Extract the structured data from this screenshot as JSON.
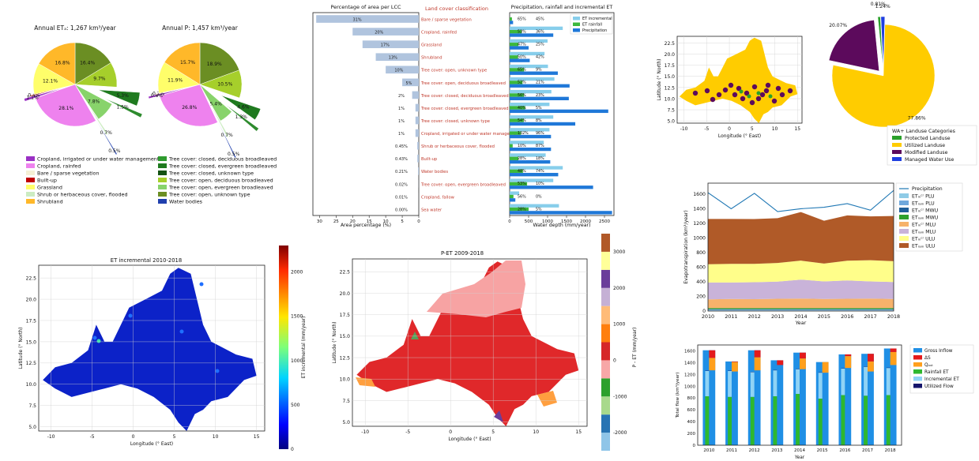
{
  "chart_data": [
    {
      "id": "pie_et",
      "type": "pie",
      "title": "Annual ETₐ: 1,267 km³/year",
      "values": [
        16.4,
        9.7,
        5.3,
        1.5,
        7.8,
        0.7,
        0.5,
        28.1,
        1.1,
        0.4,
        12.1,
        16.8
      ],
      "labels": [
        "16.4%",
        "9.7%",
        "5.3%",
        "1.5%",
        "7.8%",
        "0.7%",
        "0.5%",
        "28.1%",
        "1.1%",
        "0.4%",
        "12.1%",
        "16.8%"
      ],
      "colors": [
        "#6b8e23",
        "#a6cf2b",
        "#1f7a1f",
        "#2e8b2e",
        "#88d36b",
        "#ccecc2",
        "#1f3fae",
        "#ee82ee",
        "#9a30c4",
        "#c00000",
        "#fffe6a",
        "#ffb829"
      ]
    },
    {
      "id": "pie_p",
      "type": "pie",
      "title": "Annual P: 1,457 km³/year",
      "values": [
        18.9,
        10.5,
        4.6,
        1.3,
        5.4,
        0.7,
        0.5,
        26.8,
        0.8,
        0.2,
        11.9,
        15.7
      ],
      "labels": [
        "18.9%",
        "10.5%",
        "4.6%",
        "1.3%",
        "5.4%",
        "0.7%",
        "0.5%",
        "26.8%",
        "0.8%",
        "0.2%",
        "11.9%",
        "15.7%"
      ],
      "colors": [
        "#6b8e23",
        "#a6cf2b",
        "#1f7a1f",
        "#2e8b2e",
        "#88d36b",
        "#ccecc2",
        "#1f3fae",
        "#ee82ee",
        "#9a30c4",
        "#c00000",
        "#fffe6a",
        "#ffb829"
      ]
    },
    {
      "id": "lcc_bar",
      "type": "bar",
      "title": "Percentage of area per LCC",
      "xlabel": "Area percentage (%)",
      "xticks": [
        "30",
        "25",
        "20",
        "15",
        "10",
        "5",
        "0"
      ],
      "categories": [
        "Bare / sparse vegetation",
        "Cropland, rainfed",
        "Grassland",
        "Shrubland",
        "Tree cover: open, unknown type",
        "Tree cover: open, deciduous broadleaved",
        "Tree cover: closed, deciduous broadleaved",
        "Tree cover: closed, evergreen broadleaved",
        "Tree cover: closed, unknown type",
        "Cropland, irrigated or under water management",
        "Shrub or herbaceous cover, flooded",
        "Built-up",
        "Water bodies",
        "Tree cover: open, evergreen broadleaved",
        "Cropland, fallow",
        "Sea water"
      ],
      "values": [
        31,
        20,
        17,
        13,
        10,
        5,
        2,
        1,
        1,
        1,
        0.45,
        0.43,
        0.21,
        0.02,
        0.01,
        0.0
      ],
      "value_labels": [
        "31%",
        "20%",
        "17%",
        "13%",
        "10%",
        "5%",
        "2%",
        "1%",
        "1%",
        "1%",
        "0.45%",
        "0.43%",
        "0.21%",
        "0.02%",
        "0.01%",
        "0.00%"
      ],
      "xlim": [
        32,
        0
      ],
      "center_title": "Land cover classification"
    },
    {
      "id": "water_bar",
      "type": "bar",
      "title": "Precipitation, rainfall and incremental ET",
      "xlabel": "Water depth (mm/year)",
      "xticks": [
        "0",
        "500",
        "1000",
        "1500",
        "2000",
        "2500"
      ],
      "xlim": [
        0,
        2750
      ],
      "series": [
        {
          "name": "ET incremental",
          "color": "#87ceeb",
          "values": [
            0,
            1400,
            1000,
            920,
            1010,
            1180,
            1100,
            1050,
            1150,
            1050,
            900,
            950,
            1400,
            1150,
            250,
            1300
          ]
        },
        {
          "name": "ET rainfall",
          "color": "#3cb83c",
          "values": [
            60,
            320,
            230,
            220,
            380,
            340,
            380,
            410,
            370,
            300,
            80,
            230,
            350,
            460,
            100,
            500
          ]
        },
        {
          "name": "Precipitation",
          "color": "#1f78d8",
          "values": [
            90,
            1150,
            500,
            530,
            1270,
            1580,
            1560,
            2600,
            1730,
            1090,
            1090,
            1070,
            1280,
            2200,
            150,
            2700
          ]
        }
      ],
      "pct_labels": [
        [
          "65%",
          "45%"
        ],
        [
          "53%",
          "36%"
        ],
        [
          "47%",
          "25%"
        ],
        [
          "50%",
          "42%"
        ],
        [
          "65%",
          "9%"
        ],
        [
          "52%",
          "21%"
        ],
        [
          "56%",
          "23%"
        ],
        [
          "40%",
          "5%"
        ],
        [
          "54%",
          "8%"
        ],
        [
          "102%",
          "96%"
        ],
        [
          "10%",
          "87%"
        ],
        [
          "28%",
          "18%"
        ],
        [
          "48%",
          "74%"
        ],
        [
          "53%",
          "10%"
        ],
        [
          "56%",
          "0%"
        ],
        [
          "28%",
          "5%"
        ]
      ]
    },
    {
      "id": "map_landuse",
      "type": "heatmap",
      "xlabel": "Longitude (° East)",
      "ylabel": "Latitude (° North)",
      "xticks": [
        "-10",
        "-5",
        "0",
        "5",
        "10",
        "15"
      ],
      "yticks": [
        "5.0",
        "7.5",
        "10.0",
        "12.5",
        "15.0",
        "17.5",
        "20.0",
        "22.5"
      ]
    },
    {
      "id": "pie_landuse",
      "type": "pie",
      "values": [
        77.86,
        20.07,
        0.81,
        1.24
      ],
      "labels": [
        "77.86%",
        "20.07%",
        "0.81%",
        "1.24%"
      ],
      "colors": [
        "#ffcc00",
        "#5c0a5c",
        "#2aa02a",
        "#1f3fe0"
      ],
      "legend_title": "WA+ Landuse Categories",
      "legend": [
        {
          "name": "Protected Landuse",
          "color": "#2aa02a"
        },
        {
          "name": "Utilized Landuse",
          "color": "#ffcc00"
        },
        {
          "name": "Modified Landuse",
          "color": "#5c0a5c"
        },
        {
          "name": "Managed Water Use",
          "color": "#1f3fe0"
        }
      ]
    },
    {
      "id": "area_et",
      "type": "area",
      "ylabel": "Evapotranspiration (km³/year)",
      "xlabel": "Year",
      "x": [
        "2010",
        "2011",
        "2012",
        "2013",
        "2014",
        "2015",
        "2016",
        "2017",
        "2018"
      ],
      "ylim": [
        0,
        1750
      ],
      "yticks": [
        "0",
        "200",
        "400",
        "600",
        "800",
        "1000",
        "1200",
        "1400",
        "1600"
      ],
      "precipitation": [
        1620,
        1400,
        1610,
        1360,
        1400,
        1420,
        1470,
        1380,
        1650
      ],
      "series": [
        {
          "name": "ETᵢₙᶜʳ PLU",
          "color": "#8fcbe6",
          "values": [
            10,
            10,
            10,
            10,
            10,
            10,
            10,
            10,
            10
          ]
        },
        {
          "name": "ETᵣₐᵢₙ PLU",
          "color": "#6fa8dc",
          "values": [
            10,
            10,
            10,
            10,
            10,
            10,
            10,
            10,
            10
          ]
        },
        {
          "name": "ETᵢₙᶜʳ MWU",
          "color": "#1f5f9a",
          "values": [
            5,
            5,
            5,
            5,
            5,
            5,
            5,
            5,
            5
          ]
        },
        {
          "name": "ETᵣₐᵢₙ MWU",
          "color": "#2ca02c",
          "values": [
            15,
            15,
            15,
            15,
            15,
            15,
            15,
            15,
            15
          ]
        },
        {
          "name": "ETᵢₙᶜʳ MLU",
          "color": "#f6b26b",
          "values": [
            120,
            125,
            122,
            128,
            130,
            125,
            128,
            130,
            125
          ]
        },
        {
          "name": "ETᵣₐᵢₙ MLU",
          "color": "#c9b3d9",
          "values": [
            230,
            225,
            232,
            235,
            260,
            240,
            250,
            235,
            232
          ]
        },
        {
          "name": "ETᵢₙᶜʳ ULU",
          "color": "#fffe8a",
          "values": [
            250,
            255,
            252,
            255,
            260,
            245,
            270,
            290,
            285
          ]
        },
        {
          "name": "ETᵣₐᵢₙ ULU",
          "color": "#b05a28",
          "values": [
            620,
            615,
            612,
            612,
            665,
            585,
            620,
            600,
            618
          ]
        }
      ],
      "precip_name": "Precipitation"
    },
    {
      "id": "map_et_incr",
      "type": "heatmap",
      "title": "ET incremental 2010-2018",
      "xlabel": "Longitude (° East)",
      "ylabel": "Latitude (° North)",
      "xticks": [
        "-10",
        "-5",
        "0",
        "5",
        "10",
        "15"
      ],
      "yticks": [
        "5.0",
        "7.5",
        "10.0",
        "12.5",
        "15.0",
        "17.5",
        "20.0",
        "22.5"
      ],
      "colorbar_label": "ET incremental (mm/year)",
      "colorbar_ticks": [
        "0",
        "500",
        "1000",
        "1500",
        "2000"
      ]
    },
    {
      "id": "map_pet",
      "type": "heatmap",
      "title": "P-ET 2009-2018",
      "xlabel": "Longitude (° East)",
      "ylabel": "Latitude (° North)",
      "xticks": [
        "-10",
        "-5",
        "0",
        "5",
        "10",
        "15"
      ],
      "yticks": [
        "5.0",
        "7.5",
        "10.0",
        "12.5",
        "15.0",
        "17.5",
        "20.0",
        "22.5"
      ],
      "colorbar_label": "P - ET (mm/year)",
      "colorbar_ticks": [
        "3000",
        "2000",
        "1000",
        "0",
        "-1000",
        "-2000"
      ],
      "colorbar_colors": [
        "#8fc5e8",
        "#2874b3",
        "#a8d98c",
        "#2ca02c",
        "#f7a7a7",
        "#d62728",
        "#ff7f0e",
        "#ffbb78",
        "#c5b0d5",
        "#6a3d9a",
        "#ffff99",
        "#b15928"
      ]
    },
    {
      "id": "stacked_flow",
      "type": "bar",
      "ylabel": "Total flow (km³/year)",
      "xlabel": "Year",
      "categories": [
        "2010",
        "2011",
        "2012",
        "2013",
        "2014",
        "2015",
        "2016",
        "2017",
        "2018"
      ],
      "yticks": [
        "0",
        "200",
        "400",
        "600",
        "800",
        "1000",
        "1200",
        "1400",
        "1600"
      ],
      "ylim": [
        0,
        1700
      ],
      "outer_series": [
        {
          "name": "Gross Inflow",
          "color": "#1f8fe5",
          "values": [
            1610,
            1420,
            1610,
            1440,
            1570,
            1410,
            1540,
            1550,
            1640
          ]
        },
        {
          "name": "ΔS",
          "color": "#e31a1c",
          "values": [
            130,
            10,
            120,
            80,
            100,
            0,
            30,
            130,
            60
          ]
        },
        {
          "name": "Qₒᵤₜ",
          "color": "#ff9f1c",
          "values": [
            210,
            160,
            220,
            0,
            180,
            180,
            200,
            170,
            220
          ]
        }
      ],
      "inner_series": [
        {
          "name": "Rainfall ET",
          "color": "#2eb82e",
          "values": [
            830,
            820,
            820,
            830,
            870,
            790,
            850,
            840,
            850
          ]
        },
        {
          "name": "Incremental ET",
          "color": "#8fd3f5",
          "values": [
            430,
            440,
            420,
            440,
            420,
            440,
            450,
            490,
            460
          ]
        },
        {
          "name": "Utilized Flow",
          "color": "#14146b",
          "values": [
            5,
            5,
            5,
            5,
            5,
            5,
            5,
            5,
            5
          ]
        }
      ]
    }
  ],
  "legend_pie": [
    {
      "name": "Cropland, irrigated or under water management",
      "color": "#9a30c4"
    },
    {
      "name": "Cropland, rainfed",
      "color": "#ee82ee"
    },
    {
      "name": "Bare / sparse vegetation",
      "color": "#f5f0d5"
    },
    {
      "name": "Built-up",
      "color": "#c00000"
    },
    {
      "name": "Grassland",
      "color": "#fffe6a"
    },
    {
      "name": "Shrub or herbaceous cover, flooded",
      "color": "#ccecc2"
    },
    {
      "name": "Shrubland",
      "color": "#ffb829"
    },
    {
      "name": "Tree cover: closed, deciduous broadleaved",
      "color": "#2e9b2e"
    },
    {
      "name": "Tree cover: closed, evergreen broadleaved",
      "color": "#1f7a1f"
    },
    {
      "name": "Tree cover: closed, unknown type",
      "color": "#145214"
    },
    {
      "name": "Tree cover: open, deciduous broadleaved",
      "color": "#a6cf2b"
    },
    {
      "name": "Tree cover: open, evergreen broadleaved",
      "color": "#88d36b"
    },
    {
      "name": "Tree cover: open, unknown type",
      "color": "#6b8e23"
    },
    {
      "name": "Water bodies",
      "color": "#1f3fae"
    }
  ]
}
